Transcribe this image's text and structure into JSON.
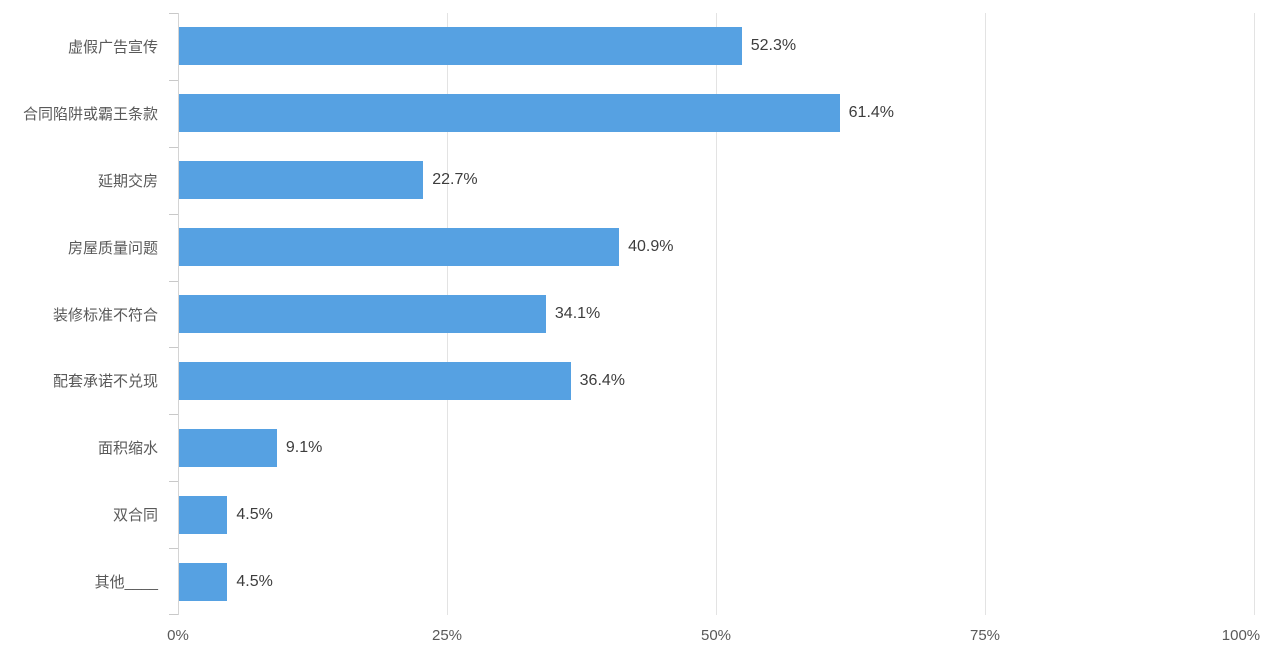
{
  "chart_data": {
    "type": "bar",
    "orientation": "horizontal",
    "title": "",
    "categories": [
      "虚假广告宣传",
      "合同陷阱或霸王条款",
      "延期交房",
      "房屋质量问题",
      "装修标准不符合",
      "配套承诺不兑现",
      "面积缩水",
      "双合同",
      "其他____"
    ],
    "values": [
      52.3,
      61.4,
      22.7,
      40.9,
      34.1,
      36.4,
      9.1,
      4.5,
      4.5
    ],
    "value_labels": [
      "52.3%",
      "61.4%",
      "22.7%",
      "40.9%",
      "34.1%",
      "36.4%",
      "9.1%",
      "4.5%",
      "4.5%"
    ],
    "x_tick_labels": [
      "0%",
      "25%",
      "50%",
      "75%",
      "100%"
    ],
    "x_tick_values": [
      0,
      25,
      50,
      75,
      100
    ],
    "xlim": [
      0,
      100
    ],
    "grid": true,
    "legend": false
  },
  "colors": {
    "bar": "#56A1E2",
    "gridline": "#E3E3E3",
    "axis_line": "#D4D4D4",
    "axis_tick": "#C9C9C9",
    "category_label": "#595959",
    "value_label": "#3D3D3D",
    "x_tick_label": "#595959",
    "background": "#FFFFFF"
  }
}
